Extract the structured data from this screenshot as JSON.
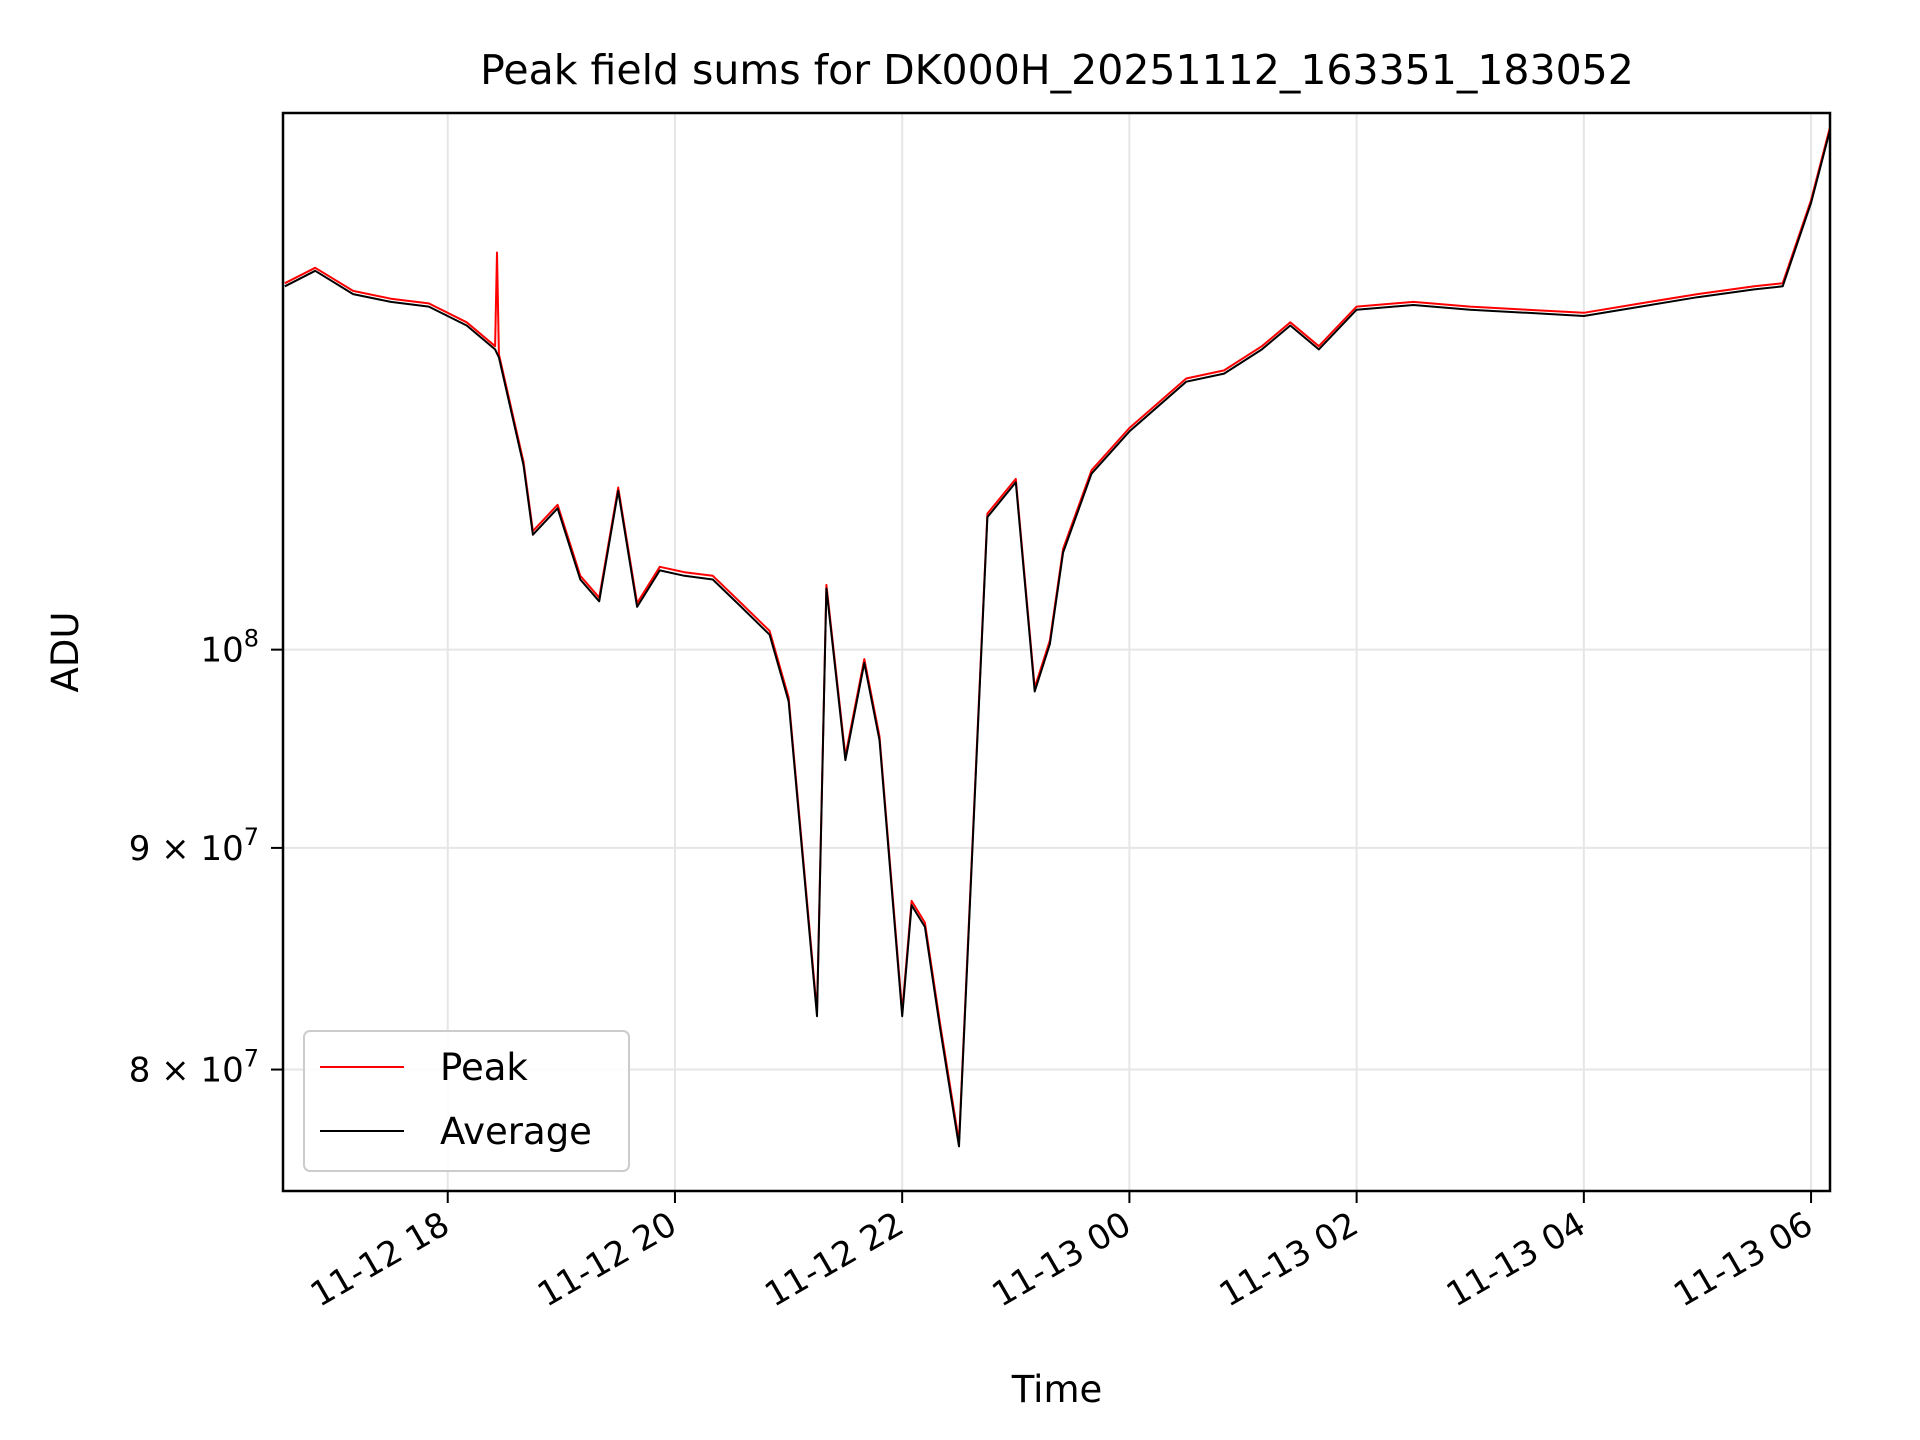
{
  "chart_data": {
    "type": "line",
    "title": "Peak field sums for DK000H_20251112_163351_183052",
    "xlabel": "Time",
    "ylabel": "ADU",
    "y_scale": "log",
    "grid": true,
    "legend_position": "lower-left",
    "x_tick_labels": [
      "11-12 18",
      "11-12 20",
      "11-12 22",
      "11-13 00",
      "11-13 02",
      "11-13 04",
      "11-13 06"
    ],
    "y_tick_labels": [
      {
        "value": 80000000,
        "base": "8 × 10",
        "exp": "7"
      },
      {
        "value": 90000000,
        "base": "9 × 10",
        "exp": "7"
      },
      {
        "value": 100000000,
        "base": "10",
        "exp": "8"
      }
    ],
    "xlim": [
      "2025-11-12 16:33",
      "2025-11-13 06:10"
    ],
    "ylim": [
      75000000,
      133000000
    ],
    "series": [
      {
        "name": "Peak",
        "color": "#ff0000",
        "x": [
          "2025-11-12 16:34",
          "2025-11-12 16:50",
          "2025-11-12 17:10",
          "2025-11-12 17:30",
          "2025-11-12 17:50",
          "2025-11-12 18:10",
          "2025-11-12 18:25",
          "2025-11-12 18:26",
          "2025-11-12 18:27",
          "2025-11-12 18:40",
          "2025-11-12 18:45",
          "2025-11-12 18:58",
          "2025-11-12 19:10",
          "2025-11-12 19:20",
          "2025-11-12 19:30",
          "2025-11-12 19:40",
          "2025-11-12 19:52",
          "2025-11-12 20:05",
          "2025-11-12 20:20",
          "2025-11-12 20:35",
          "2025-11-12 20:50",
          "2025-11-12 21:00",
          "2025-11-12 21:15",
          "2025-11-12 21:20",
          "2025-11-12 21:30",
          "2025-11-12 21:40",
          "2025-11-12 21:48",
          "2025-11-12 22:00",
          "2025-11-12 22:05",
          "2025-11-12 22:12",
          "2025-11-12 22:20",
          "2025-11-12 22:30",
          "2025-11-12 22:45",
          "2025-11-12 23:00",
          "2025-11-12 23:10",
          "2025-11-12 23:18",
          "2025-11-12 23:25",
          "2025-11-12 23:40",
          "2025-11-13 00:00",
          "2025-11-13 00:30",
          "2025-11-13 00:50",
          "2025-11-13 01:10",
          "2025-11-13 01:25",
          "2025-11-13 01:40",
          "2025-11-13 02:00",
          "2025-11-13 02:30",
          "2025-11-13 03:00",
          "2025-11-13 03:30",
          "2025-11-13 04:00",
          "2025-11-13 04:30",
          "2025-11-13 05:00",
          "2025-11-13 05:30",
          "2025-11-13 05:45",
          "2025-11-13 06:00",
          "2025-11-13 06:10"
        ],
        "values": [
          121500000,
          122500000,
          121000000,
          120500000,
          120200000,
          119000000,
          117500000,
          123500000,
          117000000,
          110500000,
          106500000,
          108000000,
          104000000,
          102800000,
          109000000,
          102500000,
          104500000,
          104200000,
          104000000,
          102500000,
          101000000,
          97500000,
          82500000,
          103500000,
          94500000,
          99500000,
          95500000,
          82500000,
          87500000,
          86500000,
          82000000,
          77000000,
          107500000,
          109500000,
          98000000,
          100500000,
          105500000,
          110000000,
          112500000,
          115500000,
          116000000,
          117500000,
          119000000,
          117500000,
          120000000,
          120300000,
          120000000,
          119800000,
          119600000,
          120200000,
          120800000,
          121300000,
          121500000,
          127000000,
          132000000
        ]
      },
      {
        "name": "Average",
        "color": "#000000",
        "x": [
          "2025-11-12 16:34",
          "2025-11-12 16:50",
          "2025-11-12 17:10",
          "2025-11-12 17:30",
          "2025-11-12 17:50",
          "2025-11-12 18:10",
          "2025-11-12 18:25",
          "2025-11-12 18:27",
          "2025-11-12 18:40",
          "2025-11-12 18:45",
          "2025-11-12 18:58",
          "2025-11-12 19:10",
          "2025-11-12 19:20",
          "2025-11-12 19:30",
          "2025-11-12 19:40",
          "2025-11-12 19:52",
          "2025-11-12 20:05",
          "2025-11-12 20:20",
          "2025-11-12 20:35",
          "2025-11-12 20:50",
          "2025-11-12 21:00",
          "2025-11-12 21:15",
          "2025-11-12 21:20",
          "2025-11-12 21:30",
          "2025-11-12 21:40",
          "2025-11-12 21:48",
          "2025-11-12 22:00",
          "2025-11-12 22:05",
          "2025-11-12 22:12",
          "2025-11-12 22:20",
          "2025-11-12 22:30",
          "2025-11-12 22:45",
          "2025-11-12 23:00",
          "2025-11-12 23:10",
          "2025-11-12 23:18",
          "2025-11-12 23:25",
          "2025-11-12 23:40",
          "2025-11-13 00:00",
          "2025-11-13 00:30",
          "2025-11-13 00:50",
          "2025-11-13 01:10",
          "2025-11-13 01:25",
          "2025-11-13 01:40",
          "2025-11-13 02:00",
          "2025-11-13 02:30",
          "2025-11-13 03:00",
          "2025-11-13 03:30",
          "2025-11-13 04:00",
          "2025-11-13 04:30",
          "2025-11-13 05:00",
          "2025-11-13 05:30",
          "2025-11-13 05:45",
          "2025-11-13 06:00",
          "2025-11-13 06:10"
        ],
        "values": [
          121300000,
          122300000,
          120800000,
          120300000,
          120000000,
          118800000,
          117300000,
          116800000,
          110300000,
          106300000,
          107800000,
          103800000,
          102600000,
          108800000,
          102300000,
          104300000,
          104000000,
          103800000,
          102300000,
          100800000,
          97300000,
          82300000,
          103300000,
          94300000,
          99300000,
          95300000,
          82300000,
          87300000,
          86300000,
          81800000,
          76800000,
          107300000,
          109300000,
          97800000,
          100300000,
          105300000,
          109800000,
          112300000,
          115300000,
          115800000,
          117300000,
          118800000,
          117300000,
          119800000,
          120100000,
          119800000,
          119600000,
          119400000,
          120000000,
          120600000,
          121100000,
          121300000,
          126800000,
          131800000
        ]
      }
    ]
  }
}
